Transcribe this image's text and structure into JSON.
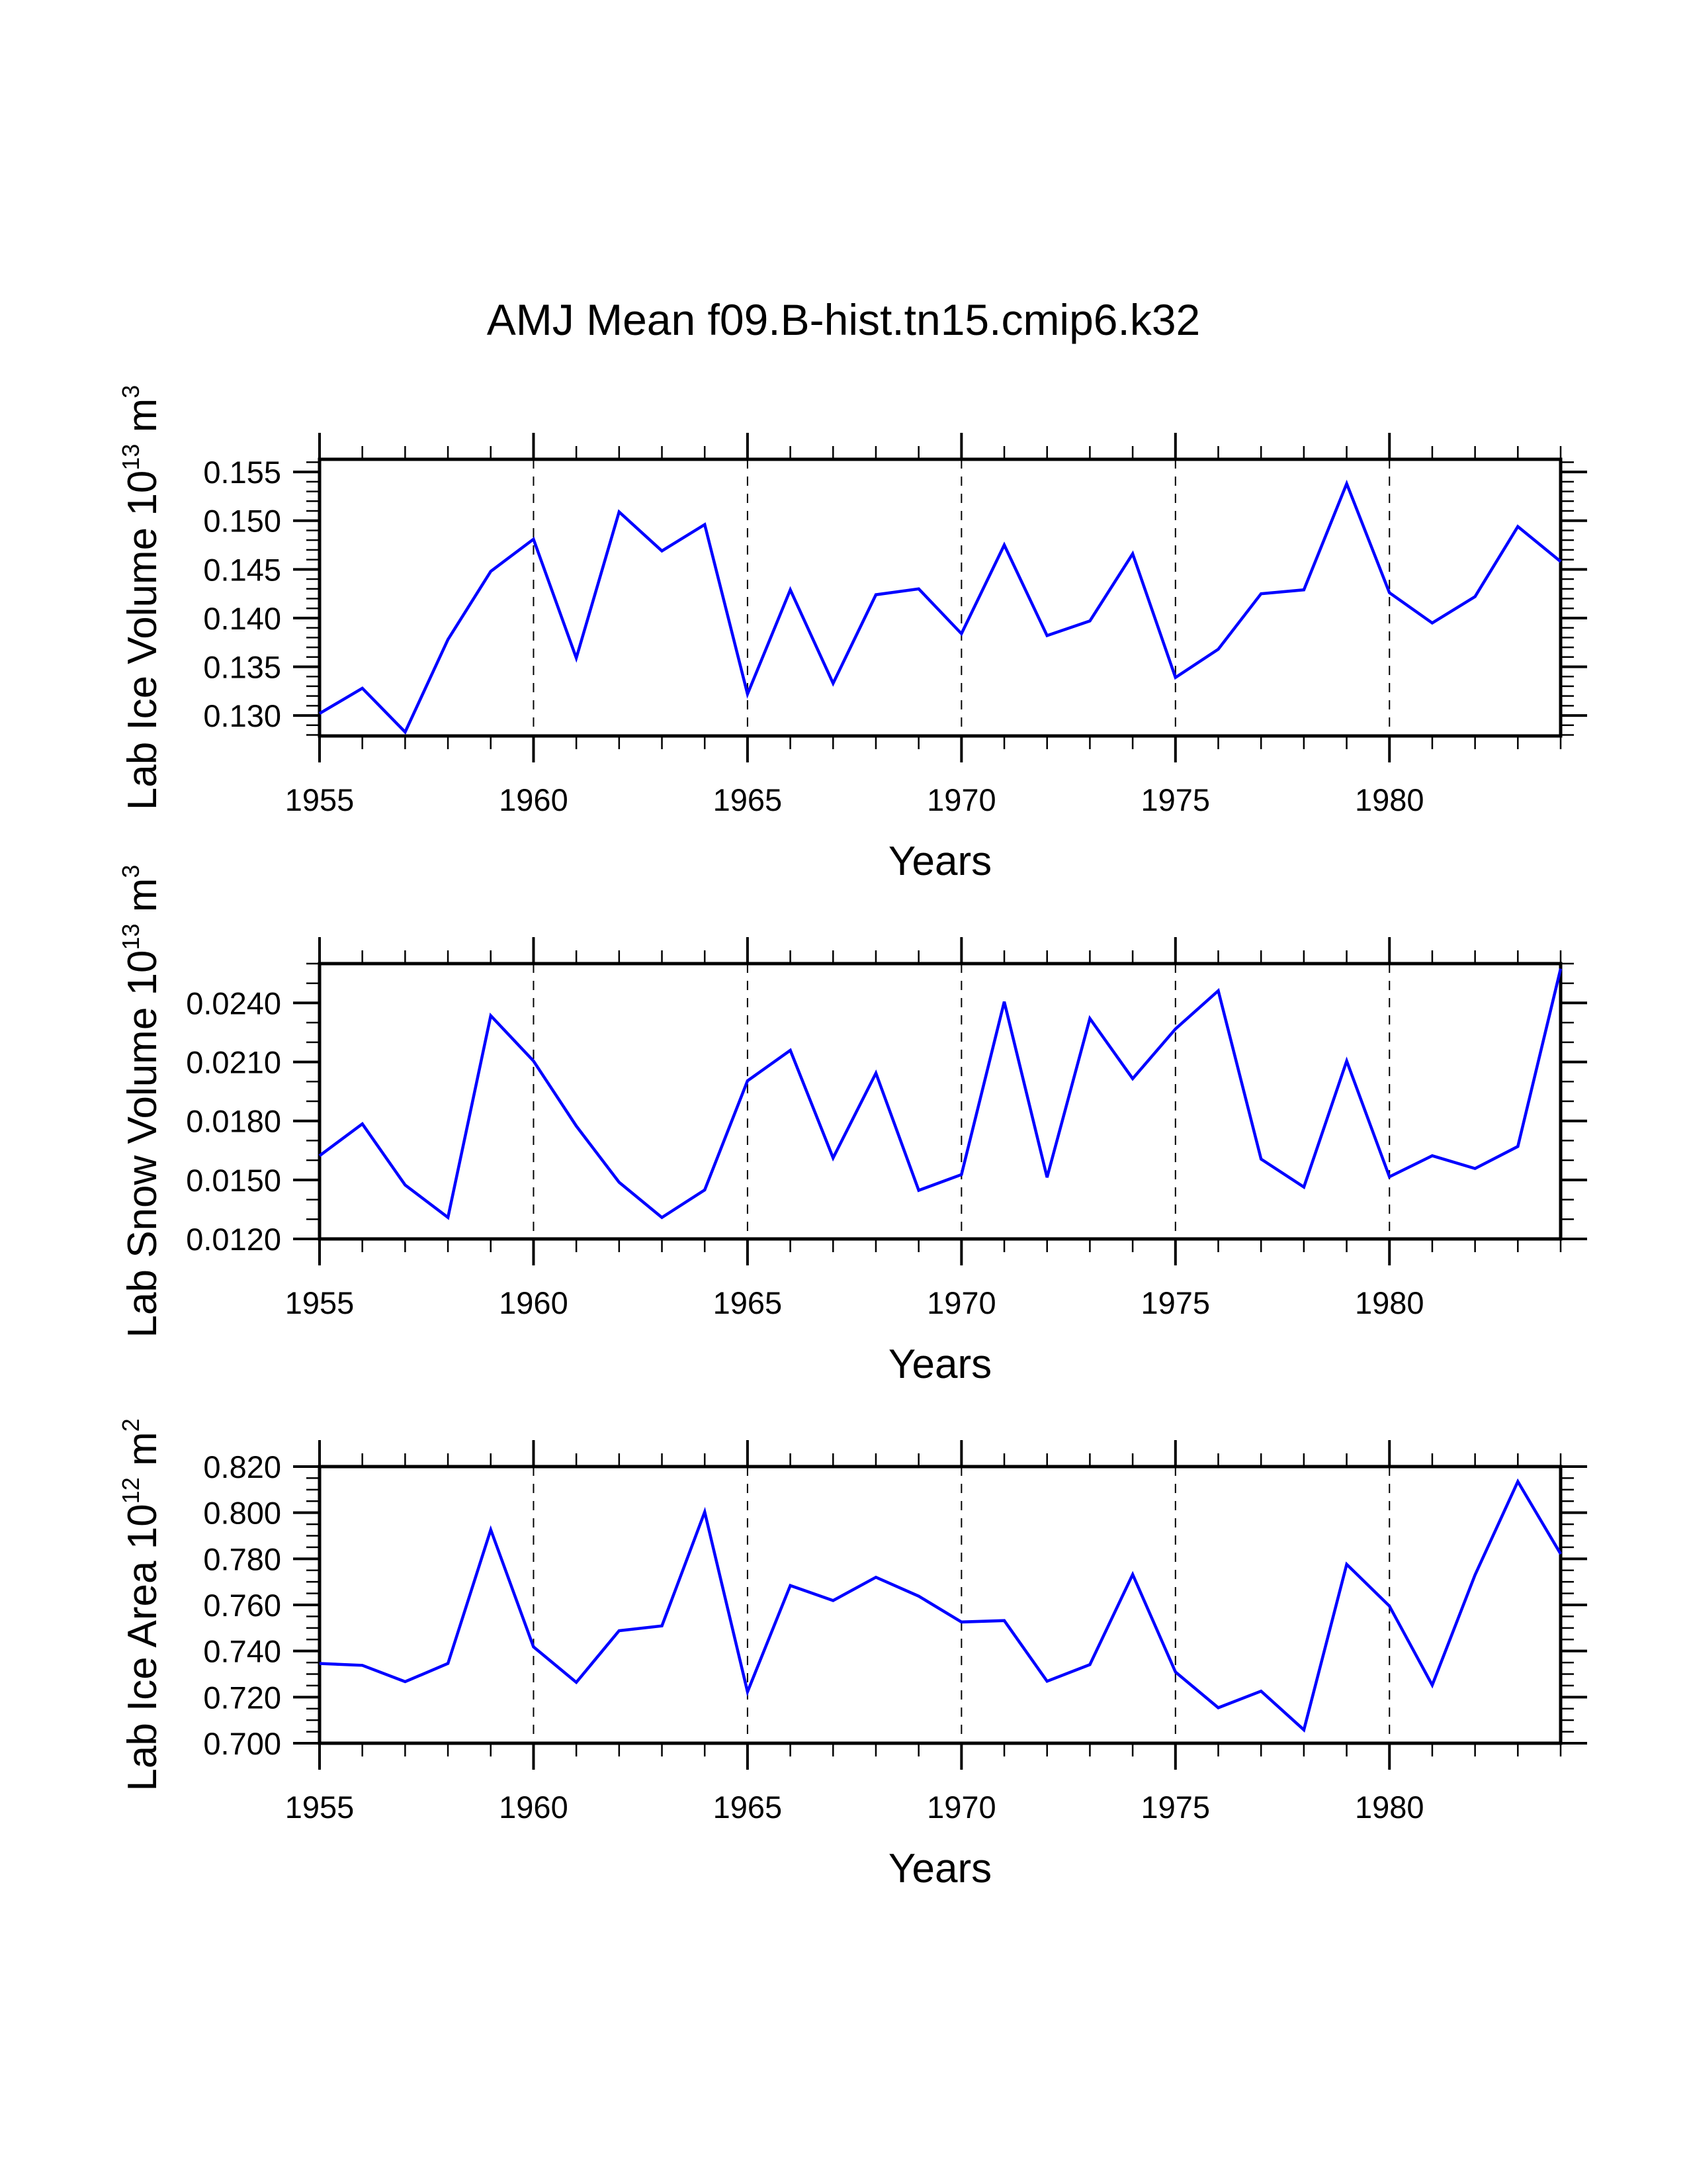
{
  "chart_data": {
    "type": "line",
    "title": "AMJ Mean f09.B-hist.tn15.cmip6.k32",
    "line_color": "#0000ff",
    "grid": "dashed vertical lines at major x ticks",
    "panels": [
      {
        "id": "ice-volume",
        "ylabel": {
          "text": "Lab Ice Volume 10",
          "exponent": "13",
          "unit": " m",
          "unit_exponent": "3"
        },
        "xlabel": "Years",
        "xlim": [
          1955,
          1984
        ],
        "ylim": [
          0.1279,
          0.1563
        ],
        "x_ticks": [
          1955,
          1960,
          1965,
          1970,
          1975,
          1980
        ],
        "x_tick_labels": [
          "1955",
          "1960",
          "1965",
          "1970",
          "1975",
          "1980"
        ],
        "y_ticks": [
          0.13,
          0.135,
          0.14,
          0.145,
          0.15,
          0.155
        ],
        "y_tick_labels": [
          "0.130",
          "0.135",
          "0.140",
          "0.145",
          "0.150",
          "0.155"
        ],
        "y_minor_step": 0.001,
        "x": [
          1955,
          1956,
          1957,
          1958,
          1959,
          1960,
          1961,
          1962,
          1963,
          1964,
          1965,
          1966,
          1967,
          1968,
          1969,
          1970,
          1971,
          1972,
          1973,
          1974,
          1975,
          1976,
          1977,
          1978,
          1979,
          1980,
          1981,
          1982,
          1983,
          1984
        ],
        "y": [
          0.1302,
          0.1328,
          0.1283,
          0.1378,
          0.1448,
          0.1481,
          0.1359,
          0.1509,
          0.1469,
          0.1496,
          0.1322,
          0.1429,
          0.1333,
          0.1424,
          0.143,
          0.1384,
          0.1475,
          0.1382,
          0.1397,
          0.1466,
          0.1339,
          0.1368,
          0.1425,
          0.1429,
          0.1538,
          0.1426,
          0.1395,
          0.1422,
          0.1494,
          0.1458
        ]
      },
      {
        "id": "snow-volume",
        "ylabel": {
          "text": "Lab Snow Volume 10",
          "exponent": "13",
          "unit": " m",
          "unit_exponent": "3"
        },
        "xlabel": "Years",
        "xlim": [
          1955,
          1984
        ],
        "ylim": [
          0.012,
          0.026
        ],
        "x_ticks": [
          1955,
          1960,
          1965,
          1970,
          1975,
          1980
        ],
        "x_tick_labels": [
          "1955",
          "1960",
          "1965",
          "1970",
          "1975",
          "1980"
        ],
        "y_ticks": [
          0.012,
          0.015,
          0.018,
          0.021,
          0.024
        ],
        "y_tick_labels": [
          "0.0120",
          "0.0150",
          "0.0180",
          "0.0210",
          "0.0240"
        ],
        "y_minor_step": 0.001,
        "x": [
          1955,
          1956,
          1957,
          1958,
          1959,
          1960,
          1961,
          1962,
          1963,
          1964,
          1965,
          1966,
          1967,
          1968,
          1969,
          1970,
          1971,
          1972,
          1973,
          1974,
          1975,
          1976,
          1977,
          1978,
          1979,
          1980,
          1981,
          1982,
          1983,
          1984
        ],
        "y": [
          0.01623,
          0.01785,
          0.01474,
          0.01309,
          0.02335,
          0.02105,
          0.01774,
          0.01488,
          0.01309,
          0.01449,
          0.02004,
          0.02159,
          0.01612,
          0.02043,
          0.01447,
          0.01527,
          0.02406,
          0.01513,
          0.02321,
          0.02015,
          0.02268,
          0.02462,
          0.01606,
          0.01464,
          0.02105,
          0.01516,
          0.01623,
          0.01558,
          0.0167,
          0.02574
        ]
      },
      {
        "id": "ice-area",
        "ylabel": {
          "text": "Lab Ice Area 10",
          "exponent": "12",
          "unit": " m",
          "unit_exponent": "2"
        },
        "xlabel": "Years",
        "xlim": [
          1955,
          1984
        ],
        "ylim": [
          0.7,
          0.82
        ],
        "x_ticks": [
          1955,
          1960,
          1965,
          1970,
          1975,
          1980
        ],
        "x_tick_labels": [
          "1955",
          "1960",
          "1965",
          "1970",
          "1975",
          "1980"
        ],
        "y_ticks": [
          0.7,
          0.72,
          0.74,
          0.76,
          0.78,
          0.8,
          0.82
        ],
        "y_tick_labels": [
          "0.700",
          "0.720",
          "0.740",
          "0.760",
          "0.780",
          "0.800",
          "0.820"
        ],
        "y_minor_step": 0.005,
        "x": [
          1955,
          1956,
          1957,
          1958,
          1959,
          1960,
          1961,
          1962,
          1963,
          1964,
          1965,
          1966,
          1967,
          1968,
          1969,
          1970,
          1971,
          1972,
          1973,
          1974,
          1975,
          1976,
          1977,
          1978,
          1979,
          1980,
          1981,
          1982,
          1983,
          1984
        ],
        "y": [
          0.7346,
          0.7338,
          0.7267,
          0.7346,
          0.7926,
          0.7418,
          0.7264,
          0.7488,
          0.7509,
          0.8003,
          0.7223,
          0.7684,
          0.7619,
          0.772,
          0.7638,
          0.7526,
          0.7532,
          0.7269,
          0.7341,
          0.7732,
          0.7309,
          0.7154,
          0.7226,
          0.7058,
          0.7776,
          0.7595,
          0.7252,
          0.773,
          0.8135,
          0.7821
        ]
      }
    ]
  }
}
